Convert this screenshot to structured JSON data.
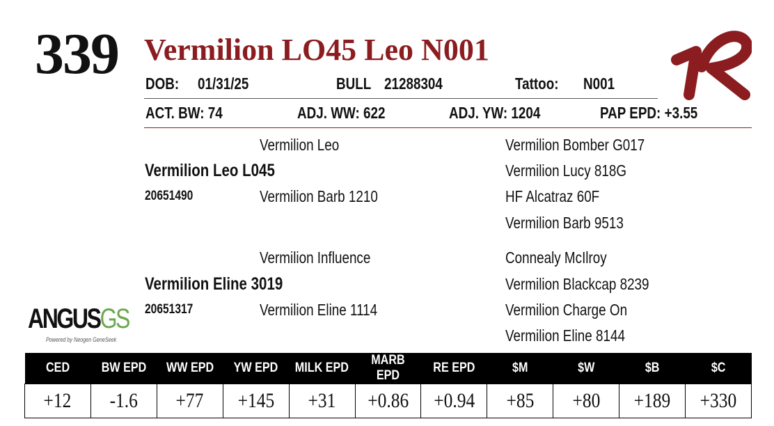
{
  "lot": "339",
  "name": "Vermilion LO45 Leo N001",
  "info": {
    "dob_label": "DOB:",
    "dob": "01/31/25",
    "sex": "BULL",
    "reg": "21288304",
    "tattoo_label": "Tattoo:",
    "tattoo": "N001"
  },
  "stats": [
    "ACT. BW: 74",
    "ADJ. WW: 622",
    "ADJ. YW: 1204",
    "PAP EPD: +3.55"
  ],
  "pedigree": {
    "sire": {
      "name": "Vermilion Leo L045",
      "reg": "20651490",
      "sire": "Vermilion Leo",
      "dam": "Vermilion Barb 1210",
      "grand": [
        "Vermilion Bomber G017",
        "Vermilion Lucy 818G",
        "HF Alcatraz 60F",
        "Vermilion Barb 9513"
      ]
    },
    "dam": {
      "name": "Vermilion Eline 3019",
      "reg": "20651317",
      "sire": "Vermilion Influence",
      "dam": "Vermilion Eline 1114",
      "grand": [
        "Connealy McIlroy",
        "Vermilion Blackcap 8239",
        "Vermilion Charge On",
        "Vermilion Eline 8144"
      ]
    }
  },
  "logo": {
    "main": "ANGUS",
    "suffix": "GS",
    "tagline": "Powered by Neogen GeneSeek"
  },
  "epd_table": {
    "headers": [
      "CED",
      "BW EPD",
      "WW EPD",
      "YW EPD",
      "MILK EPD",
      "MARB EPD",
      "RE EPD",
      "$M",
      "$W",
      "$B",
      "$C"
    ],
    "values": [
      "+12",
      "-1.6",
      "+77",
      "+145",
      "+31",
      "+0.86",
      "+0.94",
      "+85",
      "+80",
      "+189",
      "+330"
    ]
  }
}
